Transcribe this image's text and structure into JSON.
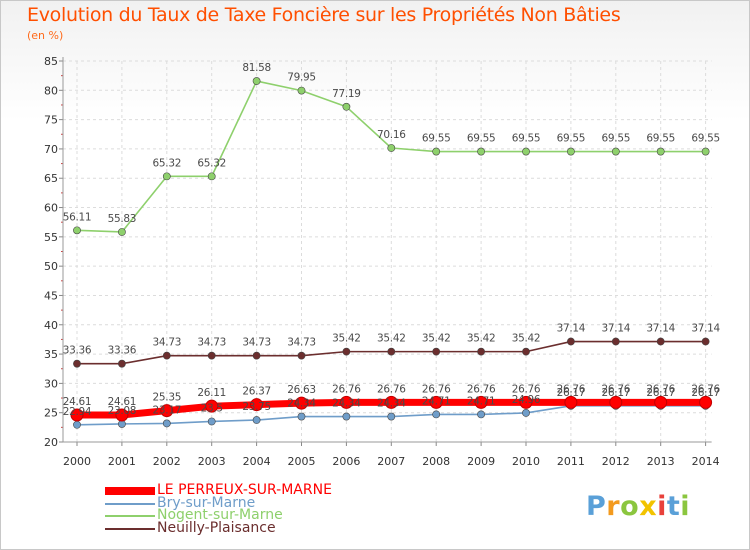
{
  "chart_data": {
    "type": "line",
    "title": "Evolution du Taux de Taxe Foncière sur les Propriétés Non Bâties",
    "unit_label": "(en %)",
    "xlabel": "",
    "ylabel": "",
    "ylim": [
      20,
      85
    ],
    "yticks": [
      20,
      25,
      30,
      35,
      40,
      45,
      50,
      55,
      60,
      65,
      70,
      75,
      80,
      85
    ],
    "grid": true,
    "legend_position": "bottom-left",
    "categories": [
      "2000",
      "2001",
      "2002",
      "2003",
      "2004",
      "2005",
      "2006",
      "2007",
      "2008",
      "2009",
      "2010",
      "2011",
      "2012",
      "2013",
      "2014"
    ],
    "series": [
      {
        "name": "Bry-sur-Marne",
        "color": "#6f9dc9",
        "values": [
          22.94,
          23.08,
          23.17,
          23.5,
          23.75,
          24.34,
          24.34,
          24.34,
          24.71,
          24.71,
          24.96,
          26.17,
          26.17,
          26.17,
          26.17
        ],
        "labels": [
          "22.94",
          "23.08",
          "23.17",
          "23.5",
          "23.75",
          "24.34",
          "24.34",
          "24.34",
          "24.71",
          "24.71",
          "24.96",
          "26.17",
          "26.17",
          "26.17",
          "26.17"
        ]
      },
      {
        "name": "Nogent-sur-Marne",
        "color": "#8ed06c",
        "values": [
          56.11,
          55.83,
          65.32,
          65.32,
          81.58,
          79.95,
          77.19,
          70.16,
          69.55,
          69.55,
          69.55,
          69.55,
          69.55,
          69.55,
          69.55
        ],
        "labels": [
          "56.11",
          "55.83",
          "65.32",
          "65.32",
          "81.58",
          "79.95",
          "77.19",
          "70.16",
          "69.55",
          "69.55",
          "69.55",
          "69.55",
          "69.55",
          "69.55",
          "69.55"
        ]
      },
      {
        "name": "Neuilly-Plaisance",
        "color": "#6b2e2e",
        "values": [
          33.36,
          33.36,
          34.73,
          34.73,
          34.73,
          34.73,
          35.42,
          35.42,
          35.42,
          35.42,
          35.42,
          37.14,
          37.14,
          37.14,
          37.14
        ],
        "labels": [
          "33.36",
          "33.36",
          "34.73",
          "34.73",
          "34.73",
          "34.73",
          "35.42",
          "35.42",
          "35.42",
          "35.42",
          "35.42",
          "37.14",
          "37.14",
          "37.14",
          "37.14"
        ]
      },
      {
        "name": "LE PERREUX-SUR-MARNE",
        "color": "#ff0000",
        "values": [
          24.61,
          24.61,
          25.35,
          26.11,
          26.37,
          26.63,
          26.76,
          26.76,
          26.76,
          26.76,
          26.76,
          26.76,
          26.76,
          26.76,
          26.76
        ],
        "labels": [
          "24.61",
          "24.61",
          "25.35",
          "26.11",
          "26.37",
          "26.63",
          "26.76",
          "26.76",
          "26.76",
          "26.76",
          "26.76",
          "26.76",
          "26.76",
          "26.76",
          "26.76"
        ]
      }
    ],
    "legend_order": [
      "LE PERREUX-SUR-MARNE",
      "Bry-sur-Marne",
      "Nogent-sur-Marne",
      "Neuilly-Plaisance"
    ]
  },
  "logo": {
    "text": "Proxiti",
    "letter_colors": [
      "#5aa0d8",
      "#f39a1e",
      "#8bc63f",
      "#f2c300",
      "#e8413b",
      "#5aa0d8",
      "#8bc63f"
    ]
  }
}
